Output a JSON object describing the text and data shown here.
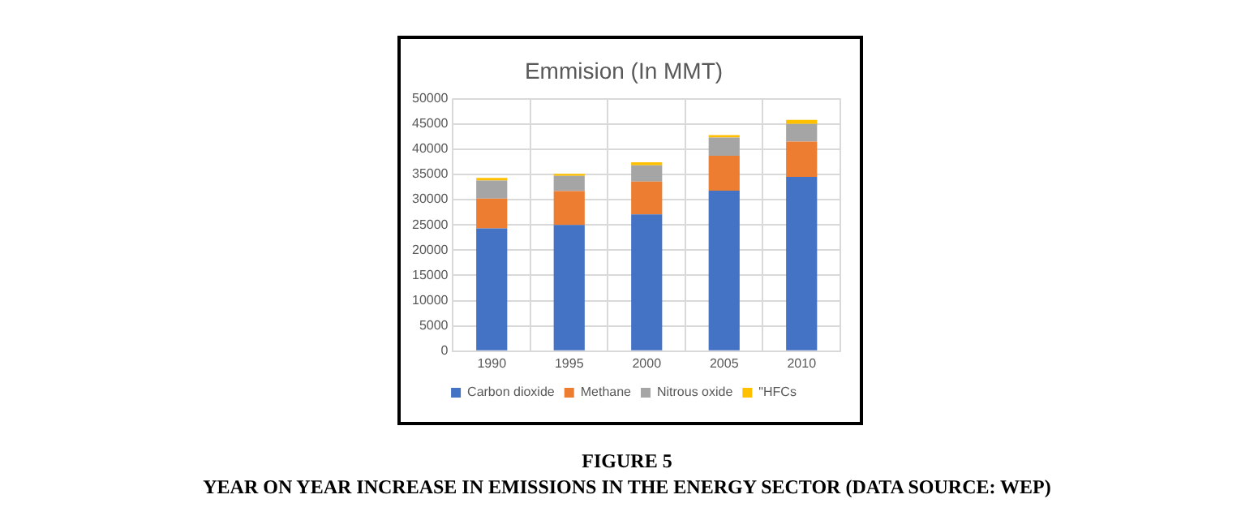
{
  "chart_data": {
    "type": "bar",
    "title": "Emmision (In MMT)",
    "stacked": true,
    "categories": [
      "1990",
      "1995",
      "2000",
      "2005",
      "2010"
    ],
    "series": [
      {
        "name": "Carbon dioxide",
        "color": "#4472c4",
        "values": [
          24300,
          25000,
          27100,
          31800,
          34500
        ]
      },
      {
        "name": "Methane",
        "color": "#ed7d31",
        "values": [
          5900,
          6700,
          6500,
          6900,
          7000
        ]
      },
      {
        "name": "Nitrous oxide",
        "color": "#a5a5a5",
        "values": [
          3600,
          3000,
          3200,
          3600,
          3500
        ]
      },
      {
        "name": "\"HFCs",
        "color": "#ffc000",
        "values": [
          500,
          400,
          600,
          500,
          800
        ]
      }
    ],
    "ylim": [
      0,
      50000
    ],
    "yticks": [
      0,
      5000,
      10000,
      15000,
      20000,
      25000,
      30000,
      35000,
      40000,
      45000,
      50000
    ],
    "grid": true,
    "legend": "bottom",
    "annotations": [
      "FIGURE 5",
      "YEAR ON YEAR INCREASE IN EMISSIONS IN THE ENERGY SECTOR (DATA SOURCE: WEP)"
    ]
  }
}
